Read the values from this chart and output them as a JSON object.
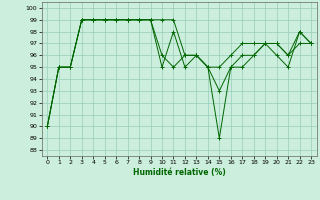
{
  "xlabel": "Humidité relative (%)",
  "background_color": "#cceedd",
  "grid_color": "#99ccbb",
  "line_color": "#006600",
  "xlim": [
    -0.5,
    23.5
  ],
  "ylim": [
    87.5,
    100.5
  ],
  "yticks": [
    88,
    89,
    90,
    91,
    92,
    93,
    94,
    95,
    96,
    97,
    98,
    99,
    100
  ],
  "xticks": [
    0,
    1,
    2,
    3,
    4,
    5,
    6,
    7,
    8,
    9,
    10,
    11,
    12,
    13,
    14,
    15,
    16,
    17,
    18,
    19,
    20,
    21,
    22,
    23
  ],
  "series": [
    [
      90,
      95,
      95,
      99,
      99,
      99,
      99,
      99,
      99,
      99,
      99,
      99,
      96,
      96,
      95,
      89,
      95,
      95,
      96,
      97,
      96,
      95,
      98,
      97
    ],
    [
      90,
      95,
      95,
      99,
      99,
      99,
      99,
      99,
      99,
      99,
      96,
      95,
      96,
      96,
      95,
      93,
      95,
      96,
      96,
      97,
      97,
      96,
      97,
      97
    ],
    [
      90,
      95,
      95,
      99,
      99,
      99,
      99,
      99,
      99,
      99,
      95,
      98,
      95,
      96,
      95,
      95,
      96,
      97,
      97,
      97,
      97,
      96,
      98,
      97
    ]
  ]
}
